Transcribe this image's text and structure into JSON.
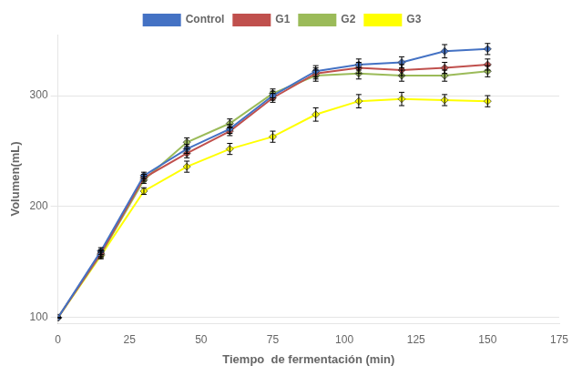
{
  "chart_data": {
    "type": "line",
    "x_label": "Tiempo  de fermentación (min)",
    "y_label": "Volumen(mL)",
    "x": [
      0,
      15,
      30,
      45,
      60,
      75,
      90,
      105,
      120,
      135,
      150
    ],
    "series": [
      {
        "name": "Control",
        "color": "#4472C4",
        "values": [
          100,
          160,
          228,
          252,
          270,
          300,
          322,
          328,
          330,
          340,
          342
        ],
        "errors": [
          0,
          3,
          3,
          4,
          4,
          4,
          5,
          5,
          5,
          6,
          5
        ]
      },
      {
        "name": "G1",
        "color": "#C0504D",
        "values": [
          100,
          158,
          226,
          248,
          268,
          298,
          320,
          325,
          323,
          325,
          328
        ],
        "errors": [
          0,
          3,
          3,
          4,
          4,
          4,
          5,
          5,
          5,
          5,
          5
        ]
      },
      {
        "name": "G2",
        "color": "#9BBB59",
        "values": [
          100,
          157,
          224,
          258,
          275,
          302,
          318,
          320,
          318,
          318,
          322
        ],
        "errors": [
          0,
          3,
          3,
          4,
          4,
          4,
          5,
          5,
          5,
          5,
          5
        ]
      },
      {
        "name": "G3",
        "color": "#FFFF00",
        "values": [
          100,
          156,
          214,
          236,
          252,
          263,
          283,
          295,
          297,
          296,
          295
        ],
        "errors": [
          0,
          3,
          3,
          5,
          5,
          5,
          6,
          6,
          6,
          5,
          5
        ]
      }
    ],
    "xlim": [
      0,
      175
    ],
    "xticks": [
      0,
      25,
      50,
      75,
      100,
      125,
      150,
      175
    ],
    "ylim": [
      95,
      355
    ],
    "yticks": [
      100,
      200,
      300
    ],
    "marker": "diamond",
    "grid": "y",
    "legend": "top"
  }
}
